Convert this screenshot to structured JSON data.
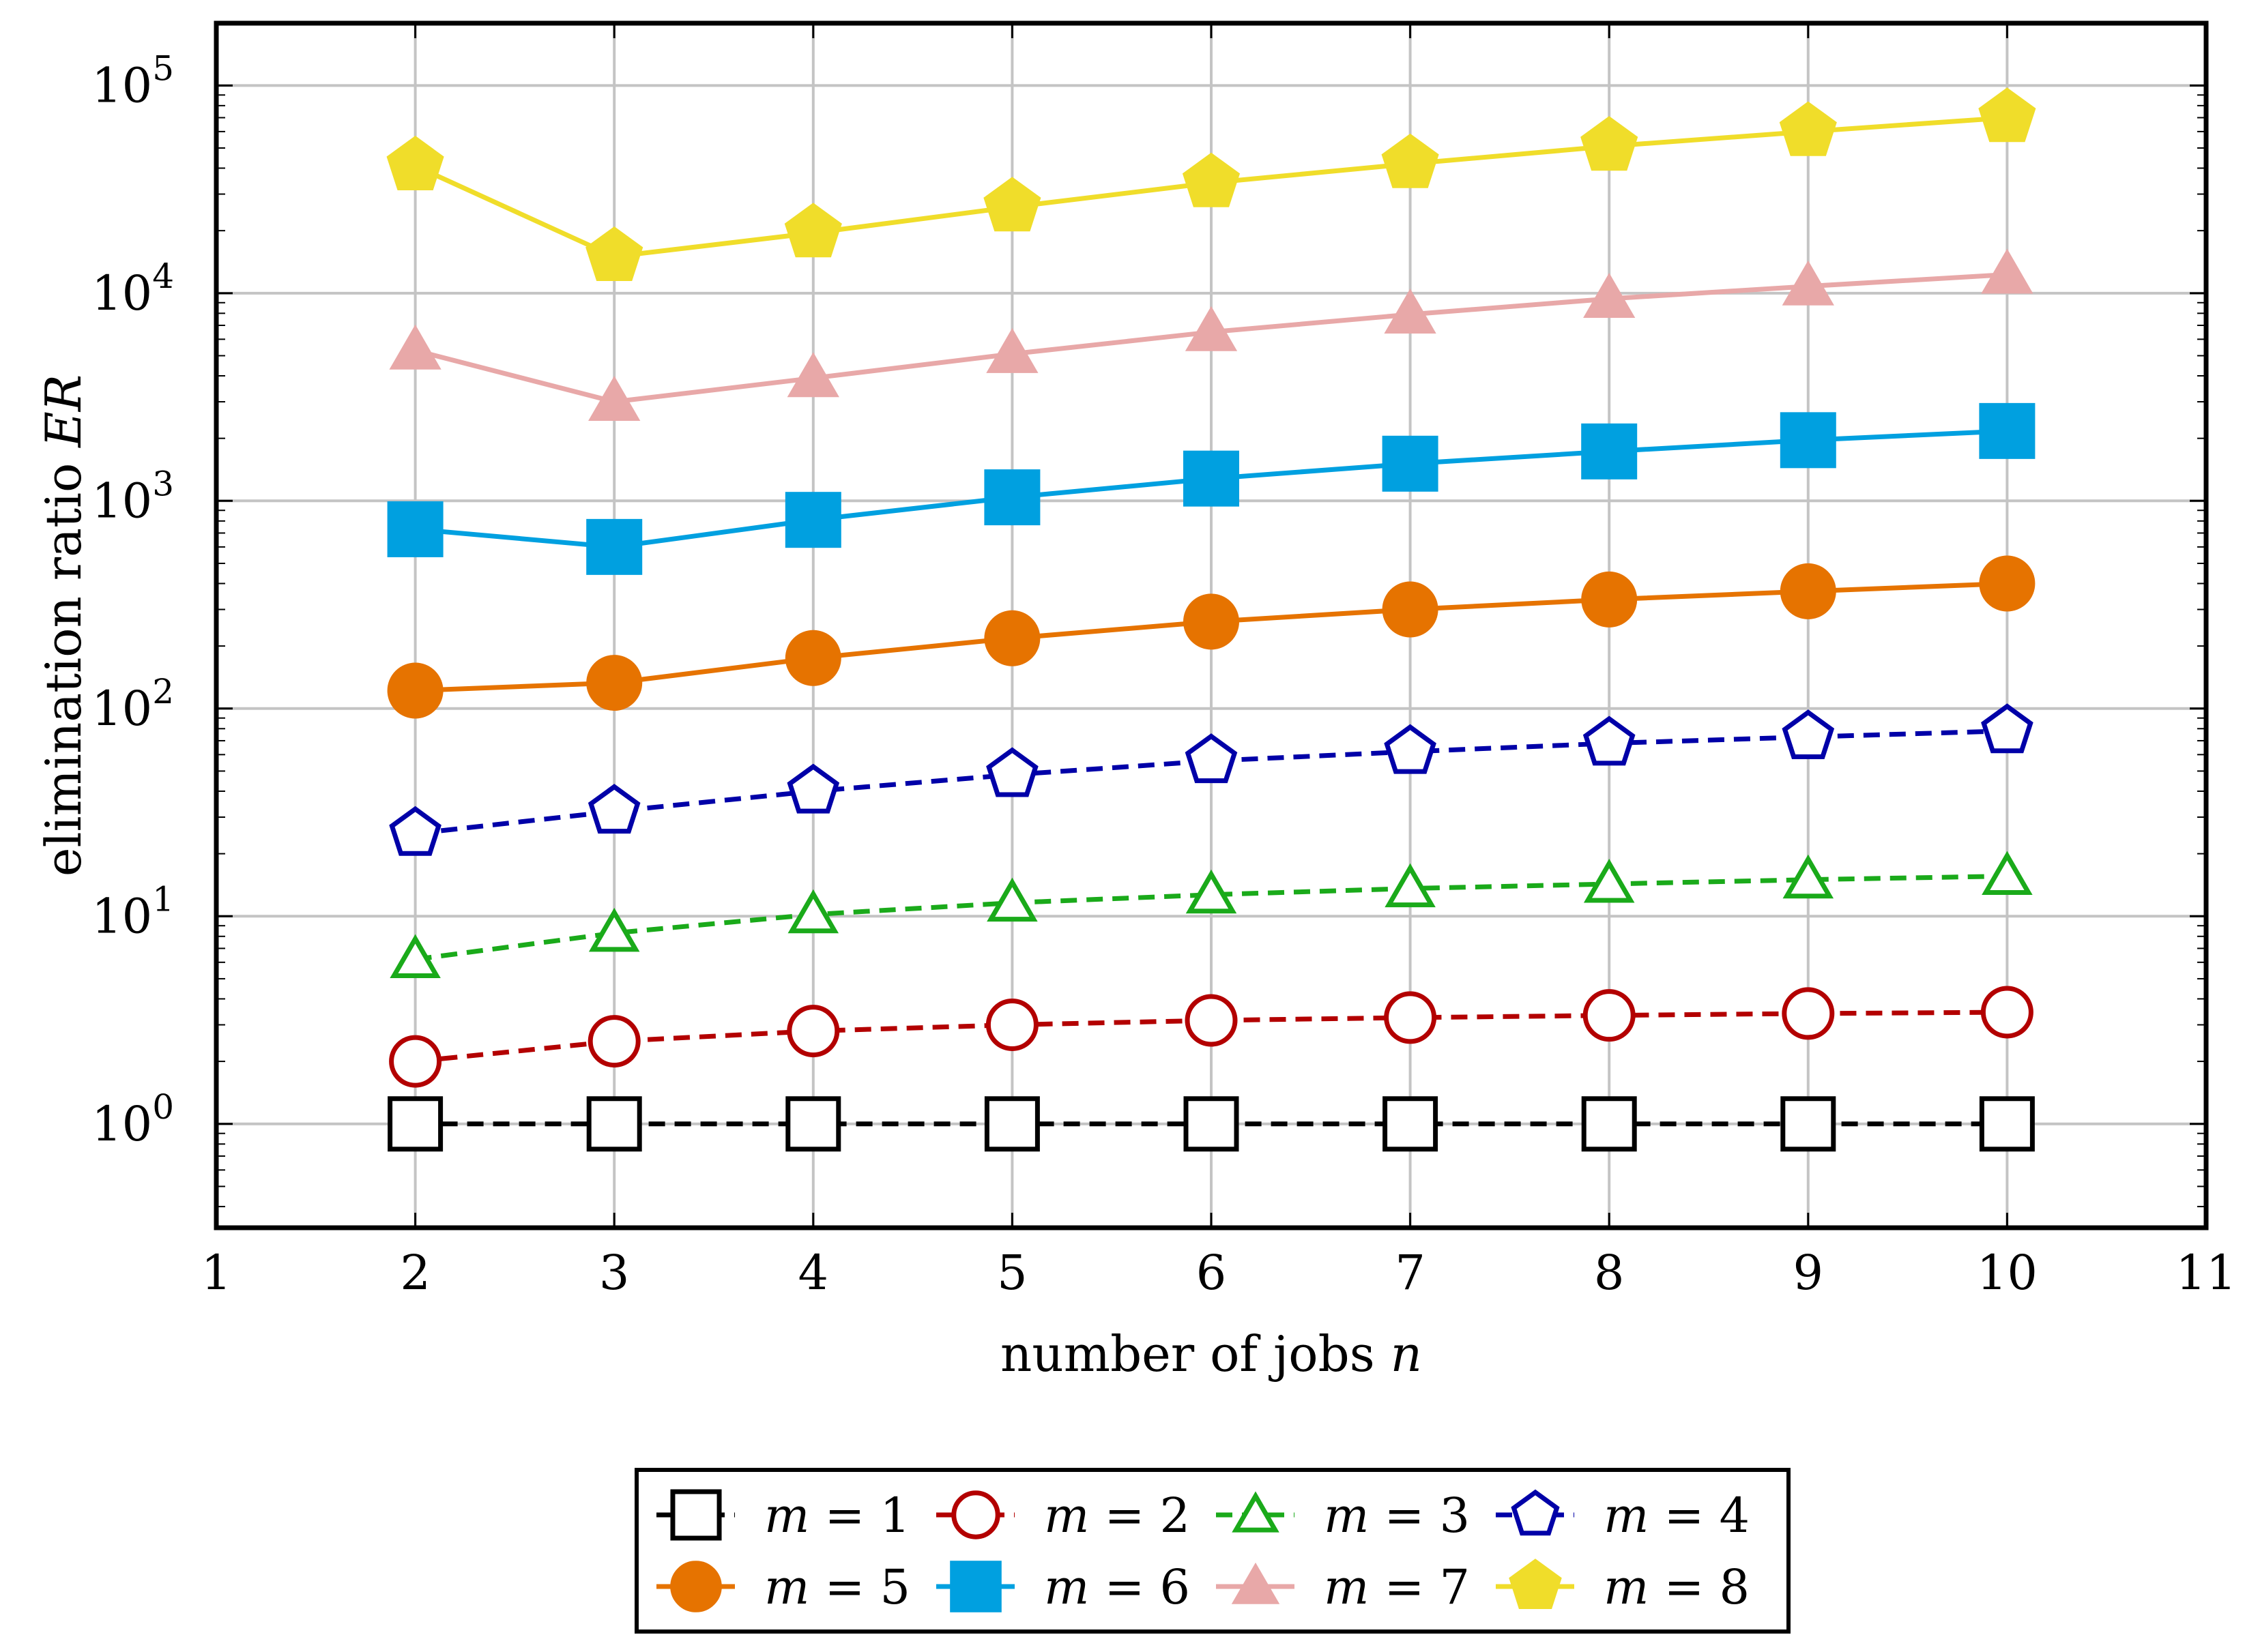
{
  "chart_data": {
    "type": "line",
    "xlabel": "number of jobs",
    "xlabel_var": "n",
    "ylabel": "elimination ratio",
    "ylabel_var": "ER",
    "xlim": [
      1,
      11
    ],
    "ylim_log10": [
      -0.5,
      5.3
    ],
    "yscale": "log",
    "grid": true,
    "xticks": [
      "1",
      "2",
      "3",
      "4",
      "5",
      "6",
      "7",
      "8",
      "9",
      "10",
      "11"
    ],
    "yticks": [
      {
        "base": "10",
        "exp": "0",
        "value": 1
      },
      {
        "base": "10",
        "exp": "1",
        "value": 10
      },
      {
        "base": "10",
        "exp": "2",
        "value": 100
      },
      {
        "base": "10",
        "exp": "3",
        "value": 1000
      },
      {
        "base": "10",
        "exp": "4",
        "value": 10000
      },
      {
        "base": "10",
        "exp": "5",
        "value": 100000
      }
    ],
    "x": [
      2,
      3,
      4,
      5,
      6,
      7,
      8,
      9,
      10
    ],
    "legend_position": "bottom-center",
    "series": [
      {
        "name": "m = 1",
        "var": "m",
        "eq": " = 1",
        "color": "#000000",
        "dashed": true,
        "marker": "square",
        "filled": false,
        "values": [
          1,
          1,
          1,
          1,
          1,
          1,
          1,
          1,
          1
        ]
      },
      {
        "name": "m = 2",
        "var": "m",
        "eq": " = 2",
        "color": "#b30000",
        "dashed": true,
        "marker": "circle",
        "filled": false,
        "values": [
          2.0,
          2.5,
          2.8,
          3.0,
          3.15,
          3.25,
          3.33,
          3.4,
          3.45
        ]
      },
      {
        "name": "m = 3",
        "var": "m",
        "eq": " = 3",
        "color": "#1aaa1a",
        "dashed": true,
        "marker": "triangle",
        "filled": false,
        "values": [
          6.2,
          8.3,
          10.2,
          11.6,
          12.7,
          13.6,
          14.3,
          15.0,
          15.6
        ]
      },
      {
        "name": "m = 4",
        "var": "m",
        "eq": " = 4",
        "color": "#0000a8",
        "dashed": true,
        "marker": "pentagon",
        "filled": false,
        "values": [
          25,
          32,
          40,
          48,
          56,
          62,
          68,
          73,
          78
        ]
      },
      {
        "name": "m = 5",
        "var": "m",
        "eq": " = 5",
        "color": "#e67300",
        "dashed": false,
        "marker": "circle",
        "filled": true,
        "values": [
          122,
          133,
          175,
          218,
          262,
          300,
          335,
          367,
          400
        ]
      },
      {
        "name": "m = 6",
        "var": "m",
        "eq": " = 6",
        "color": "#00a0e0",
        "dashed": false,
        "marker": "square",
        "filled": true,
        "values": [
          730,
          600,
          810,
          1040,
          1280,
          1510,
          1730,
          1960,
          2170
        ]
      },
      {
        "name": "m = 7",
        "var": "m",
        "eq": " = 7",
        "color": "#e8a8a8",
        "dashed": false,
        "marker": "triangle",
        "filled": true,
        "values": [
          5300,
          3000,
          3900,
          5100,
          6500,
          7900,
          9400,
          10800,
          12300
        ]
      },
      {
        "name": "m = 8",
        "var": "m",
        "eq": " = 8",
        "color": "#f0dd2a",
        "dashed": false,
        "marker": "pentagon",
        "filled": true,
        "values": [
          41000,
          15000,
          19500,
          26000,
          34000,
          42000,
          51000,
          60000,
          70000
        ]
      }
    ]
  }
}
